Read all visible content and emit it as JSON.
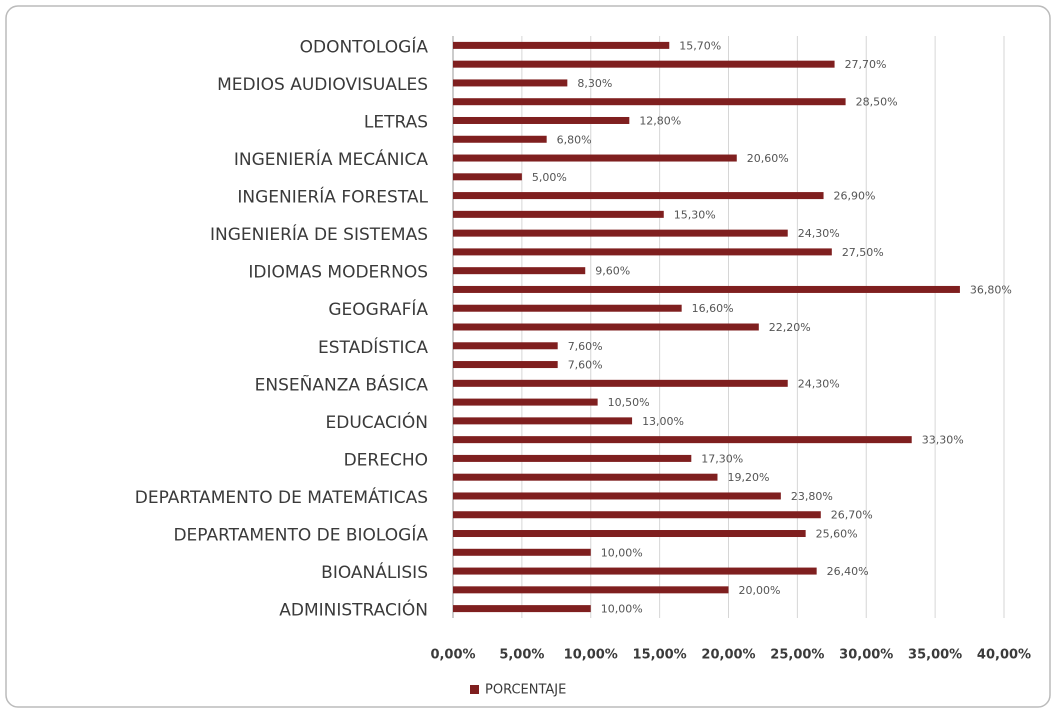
{
  "chart_data": {
    "type": "bar",
    "orientation": "horizontal",
    "categories": [
      "ODONTOLOGÍA",
      null,
      "MEDIOS AUDIOVISUALES",
      null,
      "LETRAS",
      null,
      "INGENIERÍA MECÁNICA",
      null,
      "INGENIERÍA FORESTAL",
      null,
      "INGENIERÍA DE SISTEMAS",
      null,
      "IDIOMAS MODERNOS",
      null,
      "GEOGRAFÍA",
      null,
      "ESTADÍSTICA",
      null,
      "ENSEÑANZA BÁSICA",
      null,
      "EDUCACIÓN",
      null,
      "DERECHO",
      null,
      "DEPARTAMENTO DE MATEMÁTICAS",
      null,
      "DEPARTAMENTO DE BIOLOGÍA",
      null,
      "BIOANÁLISIS",
      null,
      "ADMINISTRACIÓN"
    ],
    "series": [
      {
        "name": "PORCENTAJE",
        "color": "#7f1f1f",
        "values": [
          15.7,
          27.7,
          8.3,
          28.5,
          12.8,
          6.8,
          20.6,
          5.0,
          26.9,
          15.3,
          24.3,
          27.5,
          9.6,
          36.8,
          16.6,
          22.2,
          7.6,
          7.6,
          24.3,
          10.5,
          13.0,
          33.3,
          17.3,
          19.2,
          23.8,
          26.7,
          25.6,
          10.0,
          26.4,
          20.0,
          10.0
        ],
        "value_labels": [
          "15,70%",
          "27,70%",
          "8,30%",
          "28,50%",
          "12,80%",
          "6,80%",
          "20,60%",
          "5,00%",
          "26,90%",
          "15,30%",
          "24,30%",
          "27,50%",
          "9,60%",
          "36,80%",
          "16,60%",
          "22,20%",
          "7,60%",
          "7,60%",
          "24,30%",
          "10,50%",
          "13,00%",
          "33,30%",
          "17,30%",
          "19,20%",
          "23,80%",
          "26,70%",
          "25,60%",
          "10,00%",
          "26,40%",
          "20,00%",
          "10,00%"
        ]
      }
    ],
    "xlim": [
      0,
      40
    ],
    "xticks": [
      {
        "value": 0,
        "label": "0,00%"
      },
      {
        "value": 5,
        "label": "5,00%"
      },
      {
        "value": 10,
        "label": "10,00%"
      },
      {
        "value": 15,
        "label": "15,00%"
      },
      {
        "value": 20,
        "label": "20,00%"
      },
      {
        "value": 25,
        "label": "25,00%"
      },
      {
        "value": 30,
        "label": "30,00%"
      },
      {
        "value": 35,
        "label": "35,00%"
      },
      {
        "value": 40,
        "label": "40,00%"
      }
    ],
    "grid": true,
    "legend": "bottom"
  }
}
